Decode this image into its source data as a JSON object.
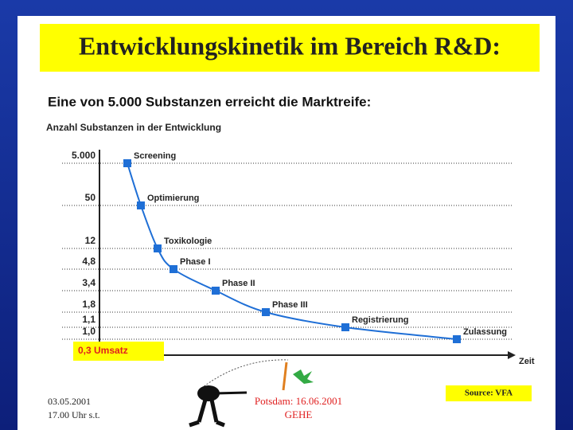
{
  "header": {
    "title": "Entwicklungskinetik im Bereich R&D:"
  },
  "chart_data": {
    "type": "line",
    "title": "Eine von 5.000 Substanzen erreicht die Marktreife:",
    "y_label": "Anzahl Substanzen in der Entwicklung",
    "x_label": "Zeit",
    "categories": [
      "Screening",
      "Optimierung",
      "Toxikologie",
      "Phase I",
      "Phase II",
      "Phase III",
      "Registrierung",
      "Zulassung"
    ],
    "values": [
      5000,
      50,
      12,
      4.8,
      3.4,
      1.8,
      1.1,
      1
    ],
    "color": "#1f6fd6",
    "yticks": [
      {
        "value": 5000,
        "label": "5.000"
      },
      50,
      12,
      {
        "value": 4.8,
        "label": "4,8"
      },
      {
        "value": 3.4,
        "label": "3,4"
      },
      {
        "value": 1.8,
        "label": "1,8"
      },
      {
        "value": 1.1,
        "label": "1,1"
      },
      {
        "value": 1,
        "label": "1,0"
      }
    ],
    "grid": true,
    "annotation": "0,3  Umsatz",
    "source": "Source: VFA"
  },
  "footer": {
    "date": "03.05.2001",
    "time": "17.00 Uhr s.t.",
    "place": "Potsdam: 16.06.2001",
    "org": "GEHE"
  }
}
